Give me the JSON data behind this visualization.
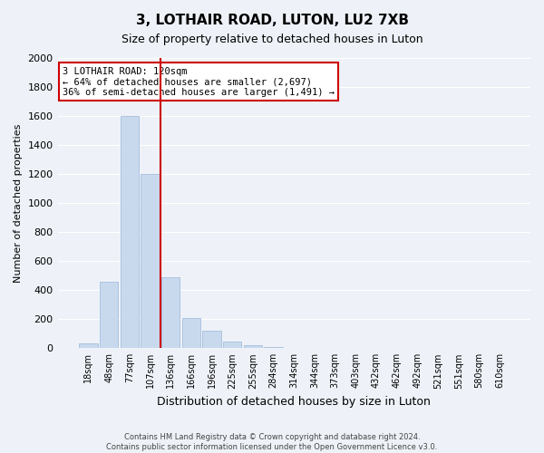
{
  "title": "3, LOTHAIR ROAD, LUTON, LU2 7XB",
  "subtitle": "Size of property relative to detached houses in Luton",
  "xlabel": "Distribution of detached houses by size in Luton",
  "ylabel": "Number of detached properties",
  "bar_labels": [
    "18sqm",
    "48sqm",
    "77sqm",
    "107sqm",
    "136sqm",
    "166sqm",
    "196sqm",
    "225sqm",
    "255sqm",
    "284sqm",
    "314sqm",
    "344sqm",
    "373sqm",
    "403sqm",
    "432sqm",
    "462sqm",
    "492sqm",
    "521sqm",
    "551sqm",
    "580sqm",
    "610sqm"
  ],
  "bar_values": [
    35,
    460,
    1600,
    1200,
    490,
    210,
    120,
    45,
    20,
    10,
    5,
    2,
    0,
    0,
    0,
    0,
    0,
    0,
    0,
    0,
    0
  ],
  "bar_color": "#c8d9ee",
  "bar_edgecolor": "#9ab5d8",
  "vline_color": "#cc0000",
  "annotation_title": "3 LOTHAIR ROAD: 120sqm",
  "annotation_line1": "← 64% of detached houses are smaller (2,697)",
  "annotation_line2": "36% of semi-detached houses are larger (1,491) →",
  "annotation_box_color": "#cc0000",
  "ylim": [
    0,
    2000
  ],
  "yticks": [
    0,
    200,
    400,
    600,
    800,
    1000,
    1200,
    1400,
    1600,
    1800,
    2000
  ],
  "footer_line1": "Contains HM Land Registry data © Crown copyright and database right 2024.",
  "footer_line2": "Contains public sector information licensed under the Open Government Licence v3.0.",
  "bg_color": "#eef2f8",
  "plot_bg_color": "#eef2f8",
  "grid_color": "#ffffff",
  "title_fontsize": 11,
  "subtitle_fontsize": 9,
  "ylabel_fontsize": 8,
  "xlabel_fontsize": 9
}
